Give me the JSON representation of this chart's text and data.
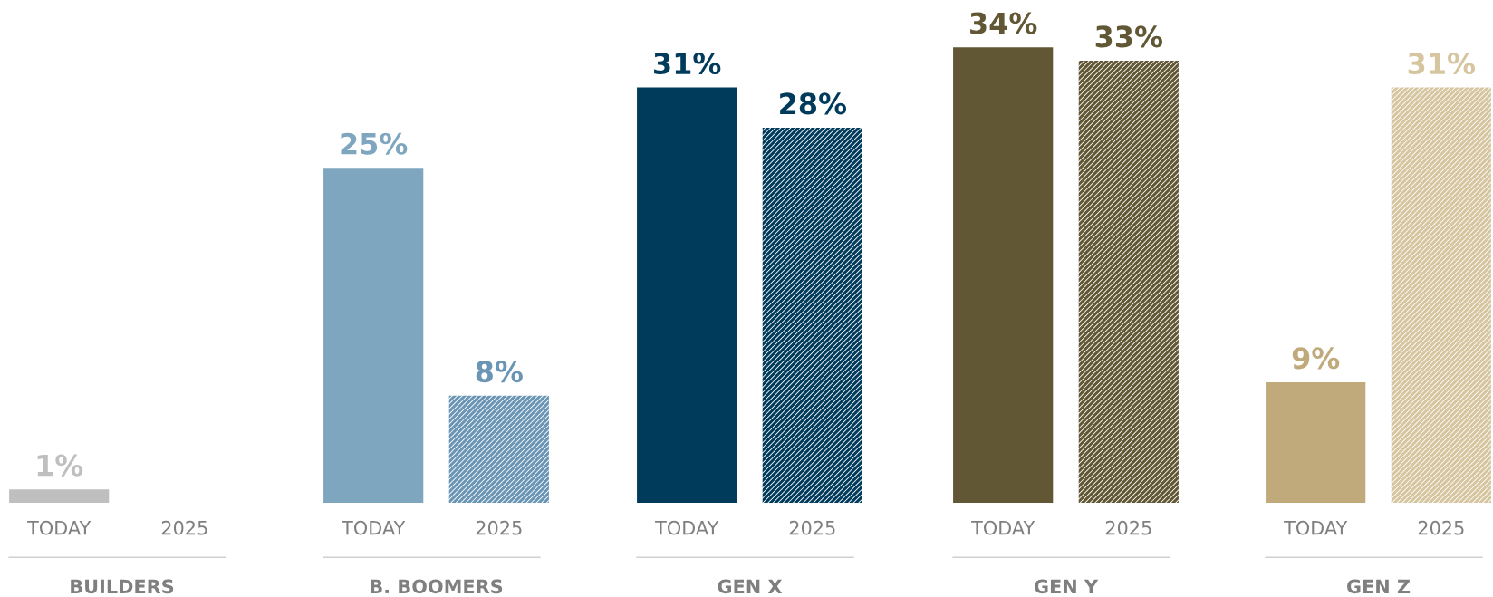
{
  "chart_data": [
    {
      "type": "bar",
      "xlabel": "BUILDERS",
      "categories": [
        "TODAY",
        "2025"
      ],
      "values": [
        1,
        null
      ],
      "colors": [
        "#bfbfbf",
        "#bfbfbf"
      ],
      "value_labels": [
        "1%",
        null
      ],
      "tick_labels": "x",
      "grid": false,
      "legend": false
    },
    {
      "type": "bar",
      "xlabel": "B. BOOMERS",
      "categories": [
        "TODAY",
        "2025"
      ],
      "values": [
        25,
        8
      ],
      "colors": [
        "#7fa6bf",
        "#6a95b5"
      ],
      "value_labels": [
        "25%",
        "8%"
      ],
      "tick_labels": "x",
      "grid": false,
      "legend": false
    },
    {
      "type": "bar",
      "xlabel": "GEN X",
      "categories": [
        "TODAY",
        "2025"
      ],
      "values": [
        31,
        28
      ],
      "colors": [
        "#003b5c",
        "#003b5c"
      ],
      "value_labels": [
        "31%",
        "28%"
      ],
      "tick_labels": "x",
      "grid": false,
      "legend": false
    },
    {
      "type": "bar",
      "xlabel": "GEN Y",
      "categories": [
        "TODAY",
        "2025"
      ],
      "values": [
        34,
        33
      ],
      "colors": [
        "#625734",
        "#625734"
      ],
      "value_labels": [
        "34%",
        "33%"
      ],
      "tick_labels": "x",
      "grid": false,
      "legend": false
    },
    {
      "type": "bar",
      "xlabel": "GEN Z",
      "categories": [
        "TODAY",
        "2025"
      ],
      "values": [
        9,
        31
      ],
      "colors": [
        "#c0a97a",
        "#d6c6a0"
      ],
      "value_labels": [
        "9%",
        "31%"
      ],
      "tick_labels": "x",
      "grid": false,
      "legend": false
    }
  ]
}
